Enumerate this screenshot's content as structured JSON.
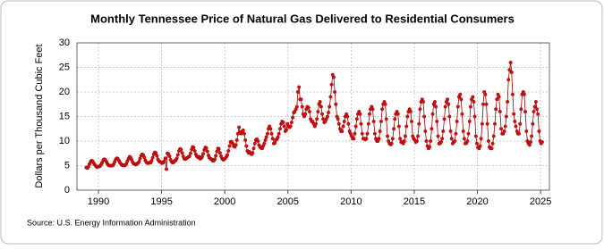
{
  "chart_data": {
    "type": "line",
    "title": "Monthly Tennessee Price of Natural Gas Delivered to Residential Consumers",
    "y_label": "Dollars per Thousand Cubic Feet",
    "source": "Source: U.S. Energy Information Administration",
    "xlim": [
      1988.3,
      2025.7
    ],
    "xticks": [
      1990,
      1995,
      2000,
      2005,
      2010,
      2015,
      2020,
      2025
    ],
    "ylim": [
      0,
      30
    ],
    "yticks": [
      0,
      5,
      10,
      15,
      20,
      25,
      30
    ],
    "grid": true,
    "x": [
      1989.04,
      1989.13,
      1989.21,
      1989.29,
      1989.38,
      1989.46,
      1989.54,
      1989.63,
      1989.71,
      1989.79,
      1989.88,
      1989.96,
      1990.04,
      1990.13,
      1990.21,
      1990.29,
      1990.38,
      1990.46,
      1990.54,
      1990.63,
      1990.71,
      1990.79,
      1990.88,
      1990.96,
      1991.04,
      1991.13,
      1991.21,
      1991.29,
      1991.38,
      1991.46,
      1991.54,
      1991.63,
      1991.71,
      1991.79,
      1991.88,
      1991.96,
      1992.04,
      1992.13,
      1992.21,
      1992.29,
      1992.38,
      1992.46,
      1992.54,
      1992.63,
      1992.71,
      1992.79,
      1992.88,
      1992.96,
      1993.04,
      1993.13,
      1993.21,
      1993.29,
      1993.38,
      1993.46,
      1993.54,
      1993.63,
      1993.71,
      1993.79,
      1993.88,
      1993.96,
      1994.04,
      1994.13,
      1994.21,
      1994.29,
      1994.38,
      1994.46,
      1994.54,
      1994.63,
      1994.71,
      1994.79,
      1994.88,
      1994.96,
      1995.04,
      1995.13,
      1995.21,
      1995.29,
      1995.38,
      1995.46,
      1995.54,
      1995.63,
      1995.71,
      1995.79,
      1995.88,
      1995.96,
      1996.04,
      1996.13,
      1996.21,
      1996.29,
      1996.38,
      1996.46,
      1996.54,
      1996.63,
      1996.71,
      1996.79,
      1996.88,
      1996.96,
      1997.04,
      1997.13,
      1997.21,
      1997.29,
      1997.38,
      1997.46,
      1997.54,
      1997.63,
      1997.71,
      1997.79,
      1997.88,
      1997.96,
      1998.04,
      1998.13,
      1998.21,
      1998.29,
      1998.38,
      1998.46,
      1998.54,
      1998.63,
      1998.71,
      1998.79,
      1998.88,
      1998.96,
      1999.04,
      1999.13,
      1999.21,
      1999.29,
      1999.38,
      1999.46,
      1999.54,
      1999.63,
      1999.71,
      1999.79,
      1999.88,
      1999.96,
      2000.04,
      2000.13,
      2000.21,
      2000.29,
      2000.38,
      2000.46,
      2000.54,
      2000.63,
      2000.71,
      2000.79,
      2000.88,
      2000.96,
      2001.04,
      2001.13,
      2001.21,
      2001.29,
      2001.38,
      2001.46,
      2001.54,
      2001.63,
      2001.71,
      2001.79,
      2001.88,
      2001.96,
      2002.04,
      2002.13,
      2002.21,
      2002.29,
      2002.38,
      2002.46,
      2002.54,
      2002.63,
      2002.71,
      2002.79,
      2002.88,
      2002.96,
      2003.04,
      2003.13,
      2003.21,
      2003.29,
      2003.38,
      2003.46,
      2003.54,
      2003.63,
      2003.71,
      2003.79,
      2003.88,
      2003.96,
      2004.04,
      2004.13,
      2004.21,
      2004.29,
      2004.38,
      2004.46,
      2004.54,
      2004.63,
      2004.71,
      2004.79,
      2004.88,
      2004.96,
      2005.04,
      2005.13,
      2005.21,
      2005.29,
      2005.38,
      2005.46,
      2005.54,
      2005.63,
      2005.71,
      2005.79,
      2005.88,
      2005.96,
      2006.04,
      2006.13,
      2006.21,
      2006.29,
      2006.38,
      2006.46,
      2006.54,
      2006.63,
      2006.71,
      2006.79,
      2006.88,
      2006.96,
      2007.04,
      2007.13,
      2007.21,
      2007.29,
      2007.38,
      2007.46,
      2007.54,
      2007.63,
      2007.71,
      2007.79,
      2007.88,
      2007.96,
      2008.04,
      2008.13,
      2008.21,
      2008.29,
      2008.38,
      2008.46,
      2008.54,
      2008.63,
      2008.71,
      2008.79,
      2008.88,
      2008.96,
      2009.04,
      2009.13,
      2009.21,
      2009.29,
      2009.38,
      2009.46,
      2009.54,
      2009.63,
      2009.71,
      2009.79,
      2009.88,
      2009.96,
      2010.04,
      2010.13,
      2010.21,
      2010.29,
      2010.38,
      2010.46,
      2010.54,
      2010.63,
      2010.71,
      2010.79,
      2010.88,
      2010.96,
      2011.04,
      2011.13,
      2011.21,
      2011.29,
      2011.38,
      2011.46,
      2011.54,
      2011.63,
      2011.71,
      2011.79,
      2011.88,
      2011.96,
      2012.04,
      2012.13,
      2012.21,
      2012.29,
      2012.38,
      2012.46,
      2012.54,
      2012.63,
      2012.71,
      2012.79,
      2012.88,
      2012.96,
      2013.04,
      2013.13,
      2013.21,
      2013.29,
      2013.38,
      2013.46,
      2013.54,
      2013.63,
      2013.71,
      2013.79,
      2013.88,
      2013.96,
      2014.04,
      2014.13,
      2014.21,
      2014.29,
      2014.38,
      2014.46,
      2014.54,
      2014.63,
      2014.71,
      2014.79,
      2014.88,
      2014.96,
      2015.04,
      2015.13,
      2015.21,
      2015.29,
      2015.38,
      2015.46,
      2015.54,
      2015.63,
      2015.71,
      2015.79,
      2015.88,
      2015.96,
      2016.04,
      2016.13,
      2016.21,
      2016.29,
      2016.38,
      2016.46,
      2016.54,
      2016.63,
      2016.71,
      2016.79,
      2016.88,
      2016.96,
      2017.04,
      2017.13,
      2017.21,
      2017.29,
      2017.38,
      2017.46,
      2017.54,
      2017.63,
      2017.71,
      2017.79,
      2017.88,
      2017.96,
      2018.04,
      2018.13,
      2018.21,
      2018.29,
      2018.38,
      2018.46,
      2018.54,
      2018.63,
      2018.71,
      2018.79,
      2018.88,
      2018.96,
      2019.04,
      2019.13,
      2019.21,
      2019.29,
      2019.38,
      2019.46,
      2019.54,
      2019.63,
      2019.71,
      2019.79,
      2019.88,
      2019.96,
      2020.04,
      2020.13,
      2020.21,
      2020.29,
      2020.38,
      2020.46,
      2020.54,
      2020.63,
      2020.71,
      2020.79,
      2020.88,
      2020.96,
      2021.04,
      2021.13,
      2021.21,
      2021.29,
      2021.38,
      2021.46,
      2021.54,
      2021.63,
      2021.71,
      2021.79,
      2021.88,
      2021.96,
      2022.04,
      2022.13,
      2022.21,
      2022.29,
      2022.38,
      2022.46,
      2022.54,
      2022.63,
      2022.71,
      2022.79,
      2022.88,
      2022.96,
      2023.04,
      2023.13,
      2023.21,
      2023.29,
      2023.38,
      2023.46,
      2023.54,
      2023.63,
      2023.71,
      2023.79,
      2023.88,
      2023.96,
      2024.04,
      2024.13,
      2024.21,
      2024.29,
      2024.38,
      2024.46,
      2024.54,
      2024.63,
      2024.71,
      2024.79,
      2024.88,
      2024.96,
      2025.04,
      2025.13
    ],
    "series": [
      {
        "color": "#990000",
        "marker_color": "#cc1111",
        "values": [
          4.6,
          4.5,
          4.8,
          5.3,
          5.8,
          6.0,
          5.9,
          5.5,
          5.2,
          4.9,
          4.7,
          4.8,
          4.8,
          4.9,
          5.2,
          5.6,
          6.1,
          6.3,
          6.2,
          5.8,
          5.4,
          5.1,
          5.0,
          5.0,
          5.0,
          5.0,
          5.3,
          5.8,
          6.3,
          6.5,
          6.4,
          6.0,
          5.6,
          5.3,
          5.1,
          5.1,
          5.0,
          5.1,
          5.4,
          5.9,
          6.4,
          6.8,
          6.7,
          6.2,
          5.7,
          5.4,
          5.3,
          5.2,
          5.4,
          5.5,
          5.8,
          6.4,
          7.0,
          7.3,
          7.2,
          6.7,
          6.1,
          5.7,
          5.5,
          5.5,
          5.6,
          5.6,
          6.0,
          6.6,
          7.3,
          7.7,
          7.6,
          7.0,
          6.3,
          5.9,
          5.8,
          5.7,
          5.5,
          5.6,
          5.9,
          6.5,
          4.3,
          7.5,
          7.4,
          6.9,
          6.2,
          5.8,
          5.6,
          5.7,
          6.0,
          6.1,
          6.5,
          7.2,
          8.0,
          8.4,
          8.3,
          7.6,
          6.9,
          6.4,
          6.3,
          6.5,
          6.6,
          6.8,
          6.9,
          7.5,
          8.3,
          8.8,
          8.7,
          8.0,
          7.3,
          6.9,
          6.7,
          6.8,
          6.4,
          6.5,
          6.8,
          7.4,
          8.2,
          8.7,
          8.6,
          7.9,
          7.1,
          6.6,
          6.4,
          6.3,
          6.0,
          6.0,
          6.3,
          7.0,
          7.9,
          8.5,
          8.4,
          7.6,
          6.9,
          6.4,
          6.2,
          6.3,
          6.5,
          6.8,
          7.2,
          8.0,
          9.0,
          9.8,
          9.9,
          9.5,
          9.0,
          8.8,
          9.2,
          10.2,
          11.5,
          12.8,
          11.8,
          11.5,
          12.0,
          12.2,
          11.5,
          10.2,
          9.0,
          8.0,
          7.6,
          7.8,
          7.5,
          7.3,
          7.6,
          8.5,
          9.5,
          10.2,
          10.4,
          10.0,
          9.2,
          8.8,
          8.6,
          8.5,
          9.0,
          9.5,
          10.2,
          10.8,
          11.5,
          12.5,
          13.0,
          12.5,
          11.5,
          10.5,
          9.5,
          9.6,
          10.2,
          10.4,
          10.8,
          11.5,
          12.5,
          13.5,
          14.0,
          13.8,
          13.0,
          12.0,
          12.3,
          13.5,
          13.0,
          12.8,
          13.0,
          13.8,
          14.8,
          15.8,
          16.0,
          16.5,
          17.0,
          20.0,
          21.0,
          18.5,
          18.5,
          17.0,
          15.5,
          15.0,
          15.5,
          16.5,
          17.0,
          16.8,
          16.0,
          14.5,
          14.0,
          14.0,
          13.5,
          13.0,
          13.5,
          14.5,
          16.0,
          17.5,
          18.0,
          17.0,
          15.5,
          14.5,
          13.8,
          14.0,
          14.5,
          15.0,
          15.8,
          17.0,
          19.0,
          21.5,
          23.5,
          23.0,
          20.0,
          17.5,
          15.0,
          14.5,
          13.5,
          12.5,
          12.0,
          12.0,
          13.0,
          14.0,
          15.0,
          15.5,
          15.0,
          13.5,
          12.0,
          11.5,
          11.0,
          10.5,
          10.5,
          11.5,
          13.0,
          14.5,
          15.5,
          16.0,
          15.5,
          13.5,
          11.5,
          10.5,
          10.5,
          10.3,
          10.5,
          11.5,
          13.5,
          15.5,
          16.5,
          17.0,
          16.5,
          14.0,
          11.5,
          10.5,
          10.0,
          10.0,
          10.5,
          12.0,
          14.0,
          16.5,
          17.5,
          18.0,
          17.5,
          14.5,
          11.0,
          10.0,
          9.5,
          9.3,
          9.5,
          10.5,
          12.5,
          14.5,
          15.5,
          16.0,
          15.5,
          13.0,
          10.5,
          9.8,
          9.8,
          9.5,
          10.0,
          11.0,
          13.0,
          15.0,
          16.0,
          16.5,
          16.0,
          14.0,
          11.0,
          10.5,
          10.2,
          9.8,
          10.0,
          11.0,
          13.5,
          16.5,
          18.0,
          18.5,
          18.0,
          15.0,
          12.0,
          10.0,
          9.0,
          8.5,
          8.8,
          10.0,
          12.5,
          15.5,
          17.5,
          18.0,
          17.0,
          14.0,
          11.0,
          9.5,
          9.5,
          9.8,
          10.5,
          12.0,
          14.5,
          17.0,
          18.0,
          18.5,
          17.5,
          15.0,
          12.0,
          10.5,
          9.5,
          9.8,
          10.0,
          11.5,
          14.0,
          17.0,
          19.0,
          19.5,
          18.5,
          15.5,
          12.0,
          10.5,
          9.5,
          9.6,
          10.0,
          11.5,
          14.0,
          17.0,
          18.5,
          19.0,
          18.0,
          15.0,
          11.0,
          9.5,
          8.7,
          8.5,
          9.0,
          10.5,
          13.5,
          17.5,
          20.0,
          19.5,
          17.5,
          13.5,
          10.0,
          8.8,
          8.5,
          8.5,
          9.5,
          11.0,
          13.5,
          16.5,
          18.5,
          19.5,
          19.0,
          16.0,
          12.5,
          11.5,
          11.5,
          12.0,
          13.0,
          15.0,
          18.0,
          22.5,
          24.5,
          26.0,
          24.0,
          19.5,
          15.5,
          14.0,
          13.0,
          12.0,
          11.5,
          11.5,
          13.5,
          16.5,
          19.5,
          20.0,
          19.5,
          16.0,
          12.0,
          10.0,
          9.5,
          9.2,
          9.8,
          11.0,
          13.5,
          16.0,
          17.0,
          18.0,
          16.5,
          15.5,
          12.0,
          10.0,
          9.5,
          9.8
        ]
      }
    ]
  }
}
